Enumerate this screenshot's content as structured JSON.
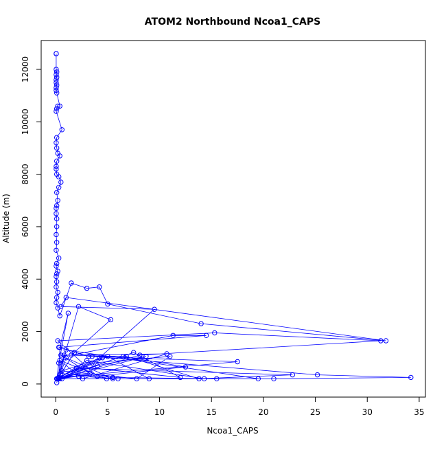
{
  "chart_data": {
    "type": "scatter",
    "title": "ATOM2 Northbound Ncoa1_CAPS",
    "xlabel": "Ncoa1_CAPS",
    "ylabel": "Altitude (m)",
    "xlim": [
      -1.4,
      35.6
    ],
    "ylim": [
      -500,
      13100
    ],
    "x_ticks": [
      0,
      5,
      10,
      15,
      20,
      25,
      30,
      35
    ],
    "y_ticks": [
      0,
      2000,
      4000,
      6000,
      8000,
      10000,
      12000
    ],
    "grid": false,
    "legend": "none",
    "marker": "open-circle",
    "connected": true,
    "series_color": "#0000ff",
    "series": [
      {
        "x": [
          0.05,
          0.05,
          0.05,
          0.1,
          0.05,
          0.1,
          0.05,
          0.05,
          0.1,
          0.05,
          0.05,
          0.1,
          0.4,
          0.2,
          0.1,
          0.05,
          0.6,
          0.1,
          0.05,
          0.1,
          0.2,
          0.4,
          0.1,
          0.05,
          0.05,
          0.1,
          0.3,
          0.5,
          0.3,
          0.1,
          0.2,
          0.1,
          0.05,
          0.05,
          0.1,
          0.1,
          0.05,
          0.1,
          0.05,
          0.3,
          0.1,
          0.05,
          0.2,
          0.1,
          0.05,
          0.1,
          0.05,
          0.2,
          0.1,
          0.05,
          0.2,
          0.4,
          1.5,
          3.0,
          4.2,
          5.0,
          14.0,
          31.8,
          1.0,
          0.5,
          9.5,
          4.2,
          0.3,
          17.5,
          3.5,
          25.2,
          34.2,
          21.0,
          15.5,
          5.5,
          0.5,
          0.2,
          2.2,
          5.3,
          1.5,
          11.3,
          14.5,
          0.3,
          3.2,
          6.5,
          12.5,
          4.0,
          0.2,
          15.3,
          31.3,
          8.1,
          0.3,
          0.4,
          1.2,
          0.3,
          0.1,
          0.8,
          6.8,
          13.8,
          22.8,
          2.0,
          0.2,
          3.3,
          0.5,
          10.7,
          2.6,
          0.4,
          4.9,
          19.5,
          1.0,
          0.3,
          8.7,
          4.0,
          0.1,
          7.5,
          12.0,
          2.5,
          0.6,
          5.0,
          9.0,
          14.3,
          3.0,
          0.2,
          1.8,
          0.3,
          4.5,
          0.6,
          7.8,
          11.0,
          3.5,
          0.4,
          2.2,
          6.0,
          0.3,
          1.0,
          5.5,
          0.2,
          0.1
        ],
        "y": [
          12600,
          12600,
          12000,
          11900,
          11800,
          11700,
          11600,
          11500,
          11400,
          11300,
          11200,
          11100,
          10600,
          10600,
          10500,
          10400,
          9700,
          9400,
          9200,
          9000,
          8800,
          8700,
          8500,
          8300,
          8200,
          8000,
          7900,
          7700,
          7500,
          7300,
          7000,
          6800,
          6700,
          6500,
          6300,
          6000,
          5700,
          5400,
          5100,
          4800,
          4600,
          4500,
          4300,
          4200,
          4100,
          3900,
          3700,
          3500,
          3300,
          3100,
          2900,
          2600,
          3850,
          3650,
          3700,
          3050,
          2300,
          1650,
          3300,
          2950,
          2850,
          1000,
          250,
          850,
          1050,
          350,
          250,
          200,
          200,
          250,
          400,
          200,
          2950,
          2450,
          1100,
          1850,
          1850,
          1400,
          1050,
          1050,
          650,
          300,
          1650,
          1950,
          1650,
          1100,
          200,
          1400,
          2700,
          800,
          200,
          1100,
          1050,
          200,
          350,
          600,
          200,
          400,
          1100,
          1150,
          200,
          900,
          200,
          200,
          1300,
          200,
          1050,
          700,
          200,
          1200,
          250,
          650,
          200,
          1050,
          200,
          200,
          900,
          200,
          1200,
          250,
          1000,
          500,
          200,
          1050,
          800,
          200,
          300,
          200,
          200,
          1000,
          200,
          200,
          50
        ]
      }
    ]
  }
}
